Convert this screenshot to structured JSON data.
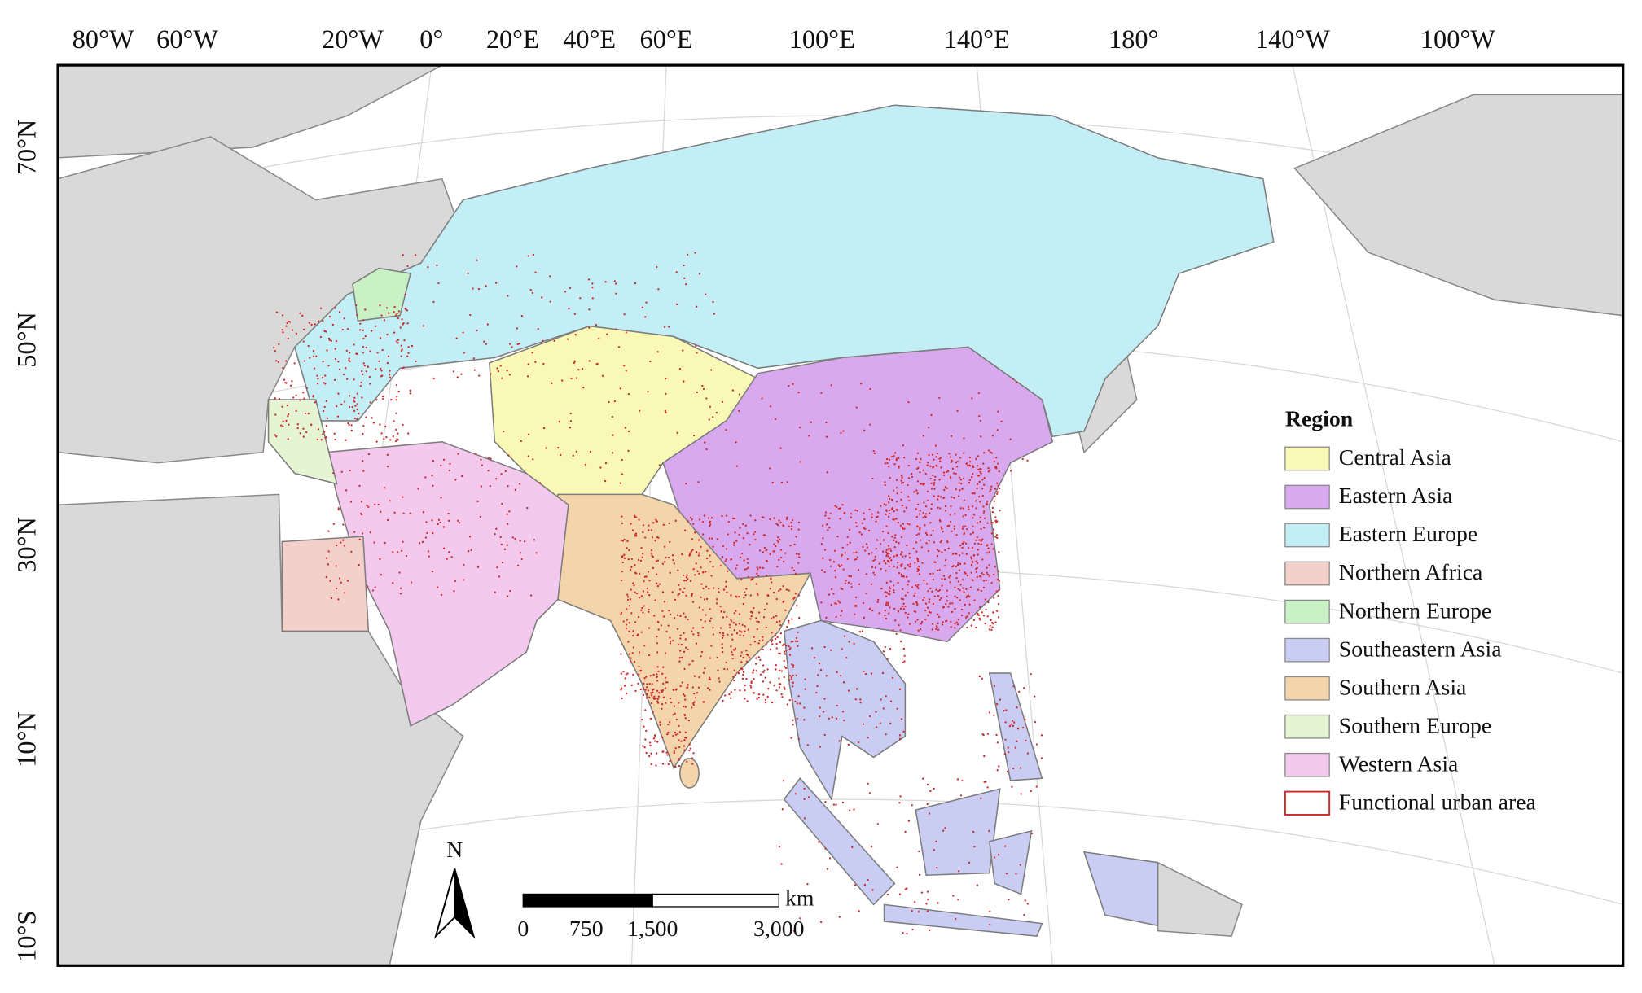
{
  "map": {
    "longitude_labels": [
      "80°W",
      "60°W",
      "20°W",
      "0°",
      "20°E",
      "40°E",
      "60°E",
      "100°E",
      "140°E",
      "180°",
      "140°W",
      "100°W"
    ],
    "latitude_labels": [
      "70°N",
      "50°N",
      "30°N",
      "10°N",
      "10°S"
    ],
    "legend": {
      "title": "Region",
      "items": [
        {
          "label": "Central Asia",
          "color": "#f9f8b4"
        },
        {
          "label": "Eastern Asia",
          "color": "#d9a9f0"
        },
        {
          "label": "Eastern Europe",
          "color": "#c3eef6"
        },
        {
          "label": "Northern Africa",
          "color": "#f4d0cb"
        },
        {
          "label": "Northern Europe",
          "color": "#c8f1c6"
        },
        {
          "label": "Southeastern Asia",
          "color": "#c9cdf4"
        },
        {
          "label": "Southern Asia",
          "color": "#f4d4aa"
        },
        {
          "label": "Southern Europe",
          "color": "#e5f4d2"
        },
        {
          "label": "Western Asia",
          "color": "#f4c9ee"
        },
        {
          "label": "Functional urban area",
          "color": "#cc2b2b",
          "style": "outline"
        }
      ]
    },
    "north_arrow": "N",
    "scale_bar": {
      "unit": "km",
      "labels": [
        "0",
        "750",
        "1,500",
        "3,000"
      ]
    }
  }
}
